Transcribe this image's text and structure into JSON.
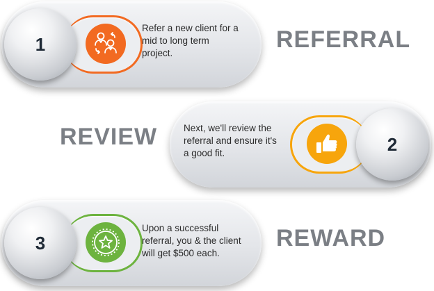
{
  "colors": {
    "step1_accent": "#f26a21",
    "step2_accent": "#f7a50c",
    "step3_accent": "#6db33f",
    "label_gray": "#7b7f85"
  },
  "steps": [
    {
      "number": "1",
      "icon": "referral-people-icon",
      "description_lines": [
        "Refer a new client for a",
        "mid to long term",
        "project."
      ],
      "label": "REFERRAL"
    },
    {
      "number": "2",
      "icon": "thumbs-up-icon",
      "description_lines": [
        "Next, we'll review the",
        "referral and ensure it's",
        "a good fit."
      ],
      "label": "REVIEW"
    },
    {
      "number": "3",
      "icon": "star-badge-icon",
      "description_lines": [
        "Upon a successful",
        "referral, you & the client",
        "will get $500 each."
      ],
      "label": "REWARD"
    }
  ]
}
